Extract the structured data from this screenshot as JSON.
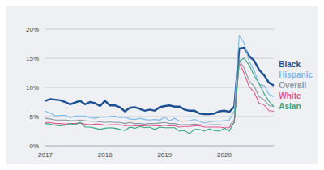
{
  "chart_data": {
    "type": "line",
    "x": [
      2017,
      2017.083,
      2017.167,
      2017.25,
      2017.333,
      2017.417,
      2017.5,
      2017.583,
      2017.667,
      2017.75,
      2017.833,
      2017.917,
      2018,
      2018.083,
      2018.167,
      2018.25,
      2018.333,
      2018.417,
      2018.5,
      2018.583,
      2018.667,
      2018.75,
      2018.833,
      2018.917,
      2019,
      2019.083,
      2019.167,
      2019.25,
      2019.333,
      2019.417,
      2019.5,
      2019.583,
      2019.667,
      2019.75,
      2019.833,
      2019.917,
      2020,
      2020.083,
      2020.167,
      2020.25,
      2020.333,
      2020.417,
      2020.5,
      2020.583,
      2020.667,
      2020.75,
      2020.833
    ],
    "series": [
      {
        "name": "Black",
        "color": "#1b4f8f",
        "values": [
          7.7,
          8.0,
          7.9,
          7.8,
          7.5,
          7.1,
          7.4,
          7.7,
          7.1,
          7.5,
          7.3,
          6.8,
          7.7,
          6.9,
          6.9,
          6.6,
          5.9,
          6.5,
          6.6,
          6.3,
          6.0,
          6.2,
          6.0,
          6.6,
          6.8,
          6.9,
          6.7,
          6.7,
          6.2,
          6.0,
          6.0,
          5.5,
          5.4,
          5.4,
          5.5,
          5.9,
          6.0,
          5.8,
          6.7,
          16.7,
          16.8,
          15.4,
          14.6,
          13.0,
          12.1,
          10.8,
          10.3
        ]
      },
      {
        "name": "Hispanic",
        "color": "#7db9e8",
        "values": [
          5.9,
          5.6,
          5.1,
          5.2,
          5.2,
          4.8,
          5.1,
          5.1,
          5.1,
          4.8,
          4.7,
          4.9,
          4.9,
          5.0,
          5.1,
          4.8,
          4.9,
          4.6,
          4.5,
          4.7,
          4.5,
          4.4,
          4.5,
          4.4,
          4.9,
          4.3,
          4.7,
          4.2,
          4.2,
          4.3,
          4.5,
          4.2,
          3.9,
          4.1,
          4.2,
          4.2,
          4.3,
          4.4,
          6.0,
          18.9,
          17.6,
          14.5,
          12.9,
          10.5,
          10.3,
          8.8,
          8.4
        ]
      },
      {
        "name": "Overall",
        "color": "#8a96a3",
        "values": [
          4.7,
          4.6,
          4.4,
          4.4,
          4.4,
          4.3,
          4.3,
          4.4,
          4.3,
          4.2,
          4.2,
          4.1,
          4.0,
          4.1,
          4.0,
          4.0,
          3.8,
          4.0,
          3.8,
          3.8,
          3.7,
          3.8,
          3.8,
          3.9,
          4.0,
          3.8,
          3.8,
          3.6,
          3.6,
          3.6,
          3.7,
          3.6,
          3.5,
          3.6,
          3.6,
          3.6,
          3.5,
          3.5,
          4.4,
          14.7,
          13.3,
          11.1,
          10.2,
          8.4,
          7.9,
          6.9,
          6.7
        ]
      },
      {
        "name": "White",
        "color": "#e0588e",
        "values": [
          4.0,
          4.0,
          3.8,
          3.8,
          3.7,
          3.8,
          3.8,
          3.9,
          3.7,
          3.6,
          3.7,
          3.7,
          3.5,
          3.6,
          3.6,
          3.6,
          3.4,
          3.5,
          3.4,
          3.4,
          3.4,
          3.5,
          3.4,
          3.4,
          3.5,
          3.4,
          3.4,
          3.2,
          3.3,
          3.3,
          3.4,
          3.4,
          3.2,
          3.2,
          3.2,
          3.2,
          3.1,
          3.1,
          4.0,
          14.2,
          12.4,
          10.1,
          9.2,
          7.3,
          7.0,
          6.0,
          5.9
        ]
      },
      {
        "name": "Asian",
        "color": "#37a57c",
        "values": [
          3.8,
          3.7,
          3.5,
          3.4,
          3.5,
          3.8,
          3.6,
          4.0,
          3.2,
          3.2,
          3.0,
          2.8,
          3.0,
          3.1,
          3.0,
          2.8,
          2.6,
          3.2,
          3.0,
          3.3,
          3.1,
          3.2,
          2.8,
          3.2,
          3.1,
          3.1,
          3.1,
          2.5,
          2.6,
          2.1,
          2.8,
          2.8,
          2.5,
          2.9,
          2.6,
          2.5,
          3.0,
          2.5,
          4.1,
          14.5,
          15.0,
          13.8,
          12.0,
          10.7,
          8.9,
          7.6,
          6.7
        ]
      }
    ],
    "xlim": [
      2017,
      2020.833
    ],
    "xticks": [
      2017,
      2018,
      2019,
      2020
    ],
    "ylim": [
      0,
      20
    ],
    "yticks": [
      {
        "value": 0,
        "label": "0%"
      },
      {
        "value": 5,
        "label": "5%"
      },
      {
        "value": 10,
        "label": "10%"
      },
      {
        "value": 15,
        "label": "15%"
      },
      {
        "value": 20,
        "label": "20%"
      }
    ],
    "grid": true,
    "legend": "right"
  }
}
